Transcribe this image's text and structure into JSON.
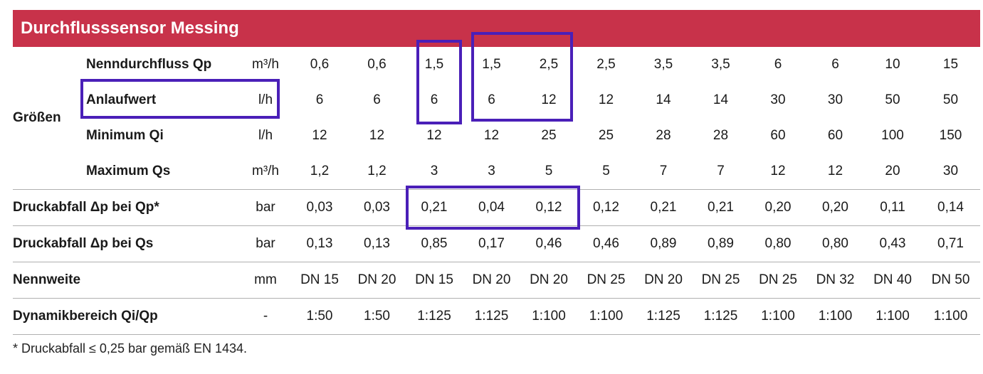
{
  "title": "Durchflusssensor Messing",
  "group_label": "Größen",
  "rows": [
    {
      "param": "Nenndurchfluss Qp",
      "unit": "m³/h",
      "values": [
        "0,6",
        "0,6",
        "1,5",
        "1,5",
        "2,5",
        "2,5",
        "3,5",
        "3,5",
        "6",
        "6",
        "10",
        "15"
      ]
    },
    {
      "param": "Anlaufwert",
      "unit": "l/h",
      "values": [
        "6",
        "6",
        "6",
        "6",
        "12",
        "12",
        "14",
        "14",
        "30",
        "30",
        "50",
        "50"
      ]
    },
    {
      "param": "Minimum Qi",
      "unit": "l/h",
      "values": [
        "12",
        "12",
        "12",
        "12",
        "25",
        "25",
        "28",
        "28",
        "60",
        "60",
        "100",
        "150"
      ]
    },
    {
      "param": "Maximum Qs",
      "unit": "m³/h",
      "values": [
        "1,2",
        "1,2",
        "3",
        "3",
        "5",
        "5",
        "7",
        "7",
        "12",
        "12",
        "20",
        "30"
      ]
    },
    {
      "param": "Druckabfall Δp bei Qp*",
      "unit": "bar",
      "values": [
        "0,03",
        "0,03",
        "0,21",
        "0,04",
        "0,12",
        "0,12",
        "0,21",
        "0,21",
        "0,20",
        "0,20",
        "0,11",
        "0,14"
      ]
    },
    {
      "param": "Druckabfall Δp bei Qs",
      "unit": "bar",
      "values": [
        "0,13",
        "0,13",
        "0,85",
        "0,17",
        "0,46",
        "0,46",
        "0,89",
        "0,89",
        "0,80",
        "0,80",
        "0,43",
        "0,71"
      ]
    },
    {
      "param": "Nennweite",
      "unit": "mm",
      "values": [
        "DN 15",
        "DN 20",
        "DN 15",
        "DN 20",
        "DN 20",
        "DN 25",
        "DN 20",
        "DN 25",
        "DN 25",
        "DN 32",
        "DN 40",
        "DN 50"
      ]
    },
    {
      "param": "Dynamikbereich Qi/Qp",
      "unit": "-",
      "values": [
        "1:50",
        "1:50",
        "1:125",
        "1:125",
        "1:100",
        "1:100",
        "1:125",
        "1:125",
        "1:100",
        "1:100",
        "1:100",
        "1:100"
      ]
    }
  ],
  "footnote": "* Druckabfall ≤ 0,25 bar gemäß EN 1434.",
  "highlight_color": "#4a1fb8",
  "header_color": "#c8324a"
}
